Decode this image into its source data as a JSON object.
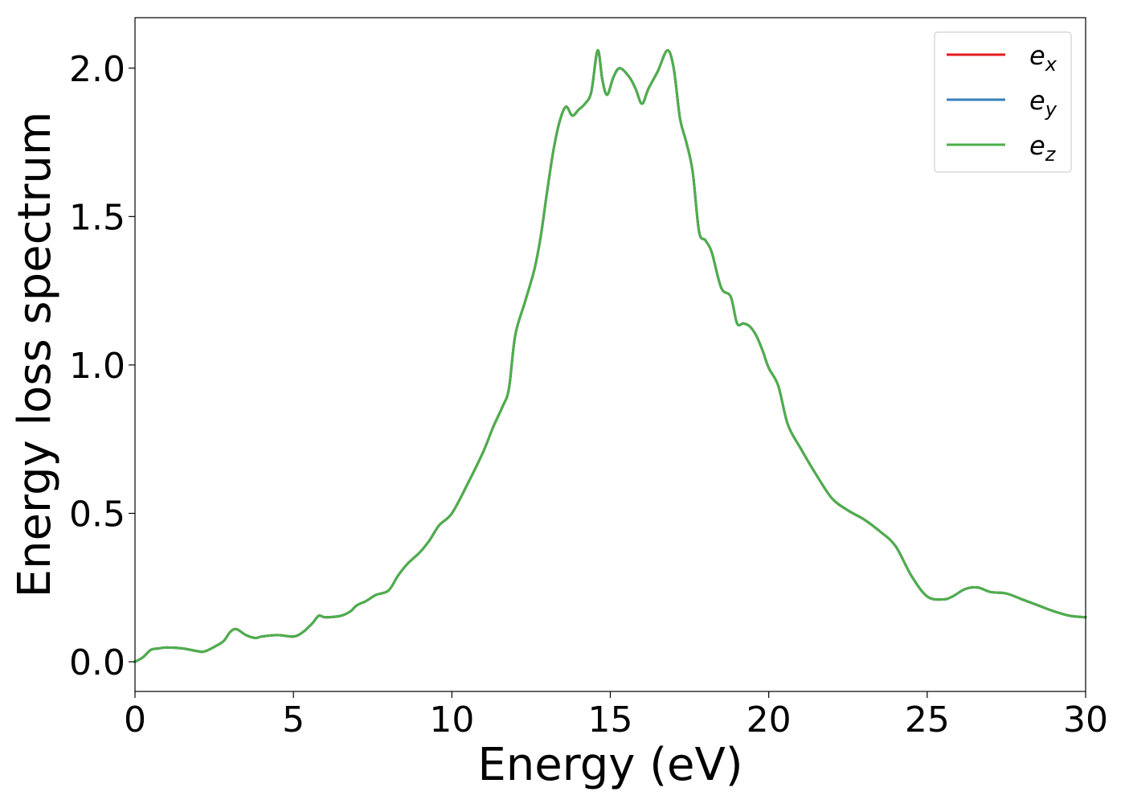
{
  "chart_data": {
    "type": "line",
    "title": "",
    "xlabel": "Energy (eV)",
    "ylabel": "Energy loss spectrum",
    "xlim": [
      0,
      30
    ],
    "ylim": [
      -0.1,
      2.17
    ],
    "xticks": [
      0,
      5,
      10,
      15,
      20,
      25,
      30
    ],
    "xtick_labels": [
      "0",
      "5",
      "10",
      "15",
      "20",
      "25",
      "30"
    ],
    "yticks": [
      0.0,
      0.5,
      1.0,
      1.5,
      2.0
    ],
    "ytick_labels": [
      "0.0",
      "0.5",
      "1.0",
      "1.5",
      "2.0"
    ],
    "grid": false,
    "legend_position": "top-right",
    "x": [
      0,
      0.25,
      0.5,
      0.75,
      1.0,
      1.5,
      2.0,
      2.2,
      2.5,
      2.8,
      3.0,
      3.2,
      3.5,
      3.8,
      4.0,
      4.5,
      5.0,
      5.3,
      5.6,
      5.8,
      6.0,
      6.5,
      6.8,
      7.0,
      7.3,
      7.6,
      8.0,
      8.3,
      8.6,
      9.0,
      9.3,
      9.6,
      10.0,
      10.5,
      11.0,
      11.3,
      11.6,
      11.8,
      12.0,
      12.3,
      12.6,
      12.8,
      13.0,
      13.2,
      13.4,
      13.6,
      13.8,
      14.0,
      14.2,
      14.4,
      14.6,
      14.75,
      14.9,
      15.1,
      15.3,
      15.6,
      15.8,
      16.0,
      16.2,
      16.5,
      16.8,
      17.0,
      17.2,
      17.4,
      17.6,
      17.8,
      18.0,
      18.2,
      18.5,
      18.8,
      19.0,
      19.2,
      19.4,
      19.6,
      19.8,
      20.0,
      20.3,
      20.6,
      21.0,
      21.5,
      22.0,
      22.5,
      23.0,
      23.5,
      24.0,
      24.5,
      25.0,
      25.5,
      25.8,
      26.2,
      26.6,
      27.0,
      27.5,
      28.0,
      28.5,
      29.0,
      29.5,
      30.0
    ],
    "series": [
      {
        "name": "e_x",
        "color": "#e41a1c",
        "values": [
          0.0,
          0.015,
          0.04,
          0.045,
          0.048,
          0.045,
          0.035,
          0.035,
          0.05,
          0.07,
          0.1,
          0.11,
          0.09,
          0.08,
          0.085,
          0.09,
          0.085,
          0.1,
          0.13,
          0.155,
          0.15,
          0.155,
          0.17,
          0.19,
          0.205,
          0.225,
          0.24,
          0.29,
          0.33,
          0.37,
          0.41,
          0.46,
          0.5,
          0.6,
          0.71,
          0.79,
          0.86,
          0.92,
          1.1,
          1.21,
          1.32,
          1.43,
          1.58,
          1.72,
          1.82,
          1.87,
          1.84,
          1.86,
          1.88,
          1.92,
          2.06,
          1.96,
          1.91,
          1.97,
          2.0,
          1.97,
          1.93,
          1.88,
          1.93,
          1.99,
          2.06,
          2.0,
          1.83,
          1.75,
          1.65,
          1.45,
          1.42,
          1.38,
          1.26,
          1.23,
          1.14,
          1.14,
          1.13,
          1.1,
          1.05,
          0.99,
          0.93,
          0.8,
          0.72,
          0.63,
          0.55,
          0.51,
          0.48,
          0.44,
          0.39,
          0.29,
          0.22,
          0.21,
          0.22,
          0.245,
          0.25,
          0.235,
          0.23,
          0.21,
          0.19,
          0.17,
          0.155,
          0.15
        ]
      },
      {
        "name": "e_y",
        "color": "#377eb8",
        "values": [
          0.0,
          0.015,
          0.04,
          0.045,
          0.048,
          0.045,
          0.035,
          0.035,
          0.05,
          0.07,
          0.1,
          0.11,
          0.09,
          0.08,
          0.085,
          0.09,
          0.085,
          0.1,
          0.13,
          0.155,
          0.15,
          0.155,
          0.17,
          0.19,
          0.205,
          0.225,
          0.24,
          0.29,
          0.33,
          0.37,
          0.41,
          0.46,
          0.5,
          0.6,
          0.71,
          0.79,
          0.86,
          0.92,
          1.1,
          1.21,
          1.32,
          1.43,
          1.58,
          1.72,
          1.82,
          1.87,
          1.84,
          1.86,
          1.88,
          1.92,
          2.06,
          1.96,
          1.91,
          1.97,
          2.0,
          1.97,
          1.93,
          1.88,
          1.93,
          1.99,
          2.06,
          2.0,
          1.83,
          1.75,
          1.65,
          1.45,
          1.42,
          1.38,
          1.26,
          1.23,
          1.14,
          1.14,
          1.13,
          1.1,
          1.05,
          0.99,
          0.93,
          0.8,
          0.72,
          0.63,
          0.55,
          0.51,
          0.48,
          0.44,
          0.39,
          0.29,
          0.22,
          0.21,
          0.22,
          0.245,
          0.25,
          0.235,
          0.23,
          0.21,
          0.19,
          0.17,
          0.155,
          0.15
        ]
      },
      {
        "name": "e_z",
        "color": "#4daf4a",
        "values": [
          0.0,
          0.015,
          0.04,
          0.045,
          0.048,
          0.045,
          0.035,
          0.035,
          0.05,
          0.07,
          0.1,
          0.11,
          0.09,
          0.08,
          0.085,
          0.09,
          0.085,
          0.1,
          0.13,
          0.155,
          0.15,
          0.155,
          0.17,
          0.19,
          0.205,
          0.225,
          0.24,
          0.29,
          0.33,
          0.37,
          0.41,
          0.46,
          0.5,
          0.6,
          0.71,
          0.79,
          0.86,
          0.92,
          1.1,
          1.21,
          1.32,
          1.43,
          1.58,
          1.72,
          1.82,
          1.87,
          1.84,
          1.86,
          1.88,
          1.92,
          2.06,
          1.96,
          1.91,
          1.97,
          2.0,
          1.97,
          1.93,
          1.88,
          1.93,
          1.99,
          2.06,
          2.0,
          1.83,
          1.75,
          1.65,
          1.45,
          1.42,
          1.38,
          1.26,
          1.23,
          1.14,
          1.14,
          1.13,
          1.1,
          1.05,
          0.99,
          0.93,
          0.8,
          0.72,
          0.63,
          0.55,
          0.51,
          0.48,
          0.44,
          0.39,
          0.29,
          0.22,
          0.21,
          0.22,
          0.245,
          0.25,
          0.235,
          0.23,
          0.21,
          0.19,
          0.17,
          0.155,
          0.15
        ]
      }
    ]
  },
  "legend": {
    "entries": [
      {
        "base": "e",
        "sub": "x"
      },
      {
        "base": "e",
        "sub": "y"
      },
      {
        "base": "e",
        "sub": "z"
      }
    ]
  }
}
